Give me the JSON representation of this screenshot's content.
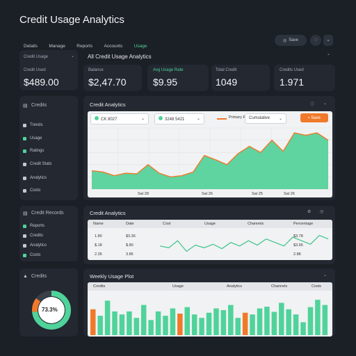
{
  "header": {
    "title": "Credit Usage Analytics",
    "nav": [
      "Details",
      "Manage",
      "Reports",
      "Accounts",
      "Usage"
    ],
    "right_button": "Save"
  },
  "sidebar_top": {
    "label": "Credit Usage"
  },
  "section_title": "All Credit Usage Analytics",
  "kpis": [
    {
      "label": "Credit Used",
      "value": "$489.00"
    },
    {
      "label": "Balance",
      "value": "$2,47.70"
    },
    {
      "label": "Avg Usage Rate",
      "value": "$9.95"
    },
    {
      "label": "Total Credit",
      "value": "1049"
    },
    {
      "label": "Credits Used",
      "value": "1.971"
    }
  ],
  "sidebar": {
    "group1_title": "Credits",
    "group1_items": [
      "Trends",
      "Usage",
      "Ratings",
      "Credit Stats",
      "Analytics",
      "Costs"
    ],
    "group2_title": "Credit Records",
    "group2_items": [
      "Reports",
      "Credits",
      "Analytics",
      "Costs"
    ],
    "group3_title": "Credits",
    "donut_label": "73.3%",
    "donut_percent": 73.3
  },
  "area_panel": {
    "title": "Credit Analytics",
    "dropdown1": "CK 8027",
    "dropdown2": "3248 5421",
    "legend": "Primary Ref",
    "dropdown3": "Cumulative",
    "button": "Save",
    "x_labels": [
      "Sat 28",
      "Sat 26",
      "Sat 25",
      "Sat 26"
    ]
  },
  "table_panel": {
    "title": "Credit Analytics",
    "headers": [
      "Name",
      "Date",
      "Cost",
      "Usage",
      "Channels",
      "Percentage"
    ],
    "rows": [
      [
        "1.80",
        "$3.36",
        "",
        "",
        "",
        "$3.78"
      ],
      [
        "$.18",
        "$.80",
        "",
        "",
        "",
        "$3.95"
      ],
      [
        "2.35",
        "3.85",
        "",
        "",
        "",
        "2.88"
      ]
    ]
  },
  "bar_panel": {
    "title": "Weekly Usage Plot",
    "headers": [
      "Credits",
      "Usage",
      "Analytics",
      "Channels",
      "Costs"
    ]
  },
  "chart_data": [
    {
      "type": "area",
      "values": [
        30,
        28,
        22,
        26,
        25,
        40,
        26,
        20,
        22,
        28,
        55,
        48,
        40,
        58,
        70,
        60,
        80,
        62,
        92,
        88,
        92,
        80
      ]
    },
    {
      "type": "line",
      "values": [
        8,
        6,
        14,
        2,
        9,
        6,
        10,
        5,
        12,
        8,
        14,
        9,
        16,
        12,
        8,
        18,
        14,
        10,
        20,
        16
      ]
    },
    {
      "type": "bar",
      "values": [
        60,
        45,
        80,
        55,
        48,
        55,
        40,
        70,
        35,
        55,
        45,
        62,
        50,
        65,
        48,
        40,
        52,
        62,
        58,
        70,
        40,
        52,
        48,
        62,
        66,
        54,
        75,
        60,
        48,
        30,
        65,
        82,
        70
      ],
      "highlight": [
        0,
        12,
        21
      ]
    }
  ],
  "colors": {
    "accent": "#4fd39a",
    "orange": "#f07a2a",
    "bg": "#1b1f26",
    "panel": "#232831"
  }
}
